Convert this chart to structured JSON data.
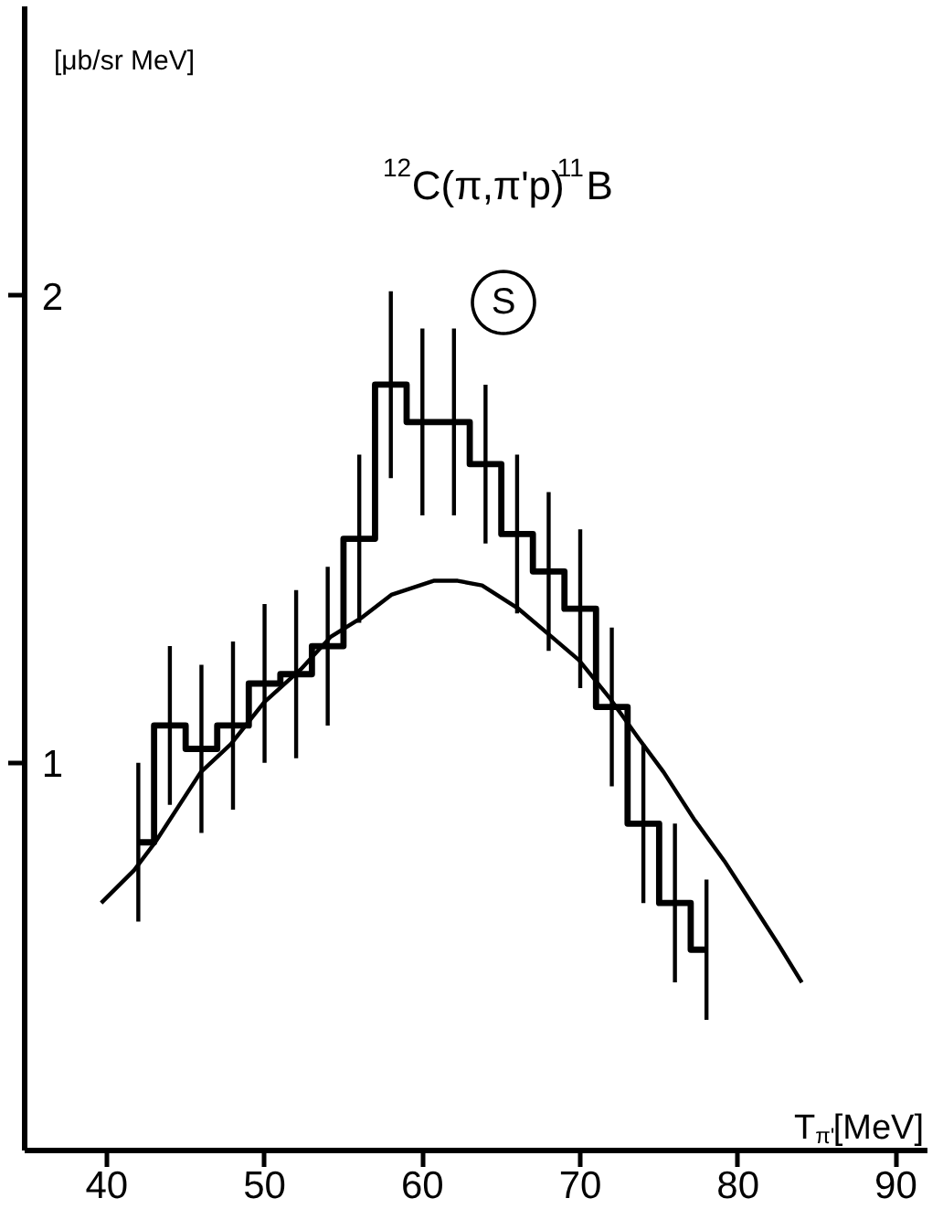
{
  "chart_data": {
    "type": "step",
    "title": "$^{12}$C(π,π'p)$^{11}$B",
    "xlabel": "T$_{π'}$[MeV]",
    "ylabel": "[μb/sr MeV]",
    "annotations": [
      "S"
    ],
    "xlim": [
      34.8,
      92
    ],
    "ylim": [
      0.17,
      2.62
    ],
    "xticks": [
      40,
      50,
      60,
      70,
      80,
      90
    ],
    "yticks": [
      1,
      2
    ],
    "series": [
      {
        "color": "#000000",
        "x": [
          42,
          44,
          46,
          48,
          50,
          52,
          54,
          56,
          58,
          60,
          62,
          64,
          66,
          68,
          70,
          72,
          74,
          76,
          78
        ],
        "values": [
          0.83,
          1.08,
          1.03,
          1.08,
          1.17,
          1.19,
          1.25,
          1.48,
          1.81,
          1.73,
          1.73,
          1.64,
          1.49,
          1.41,
          1.33,
          1.12,
          0.87,
          0.7,
          0.6
        ],
        "errors": [
          0.17,
          0.17,
          0.18,
          0.18,
          0.17,
          0.18,
          0.17,
          0.18,
          0.2,
          0.2,
          0.2,
          0.17,
          0.17,
          0.17,
          0.17,
          0.17,
          0.17,
          0.17,
          0.15
        ]
      },
      {
        "type": "line",
        "color": "#000000",
        "x": [
          39.65,
          41.73,
          43.07,
          45.95,
          47.86,
          49.98,
          52.28,
          54.19,
          56.11,
          58.03,
          60.71,
          62.24,
          63.78,
          66.09,
          68.19,
          69.92,
          71.84,
          73.75,
          75.29,
          77.2,
          79.13,
          81.05,
          82.58,
          84.04
        ],
        "values": [
          0.7,
          0.77,
          0.83,
          0.98,
          1.04,
          1.13,
          1.2,
          1.27,
          1.31,
          1.36,
          1.39,
          1.39,
          1.38,
          1.33,
          1.27,
          1.22,
          1.14,
          1.05,
          0.98,
          0.88,
          0.79,
          0.69,
          0.61,
          0.53
        ]
      }
    ]
  }
}
